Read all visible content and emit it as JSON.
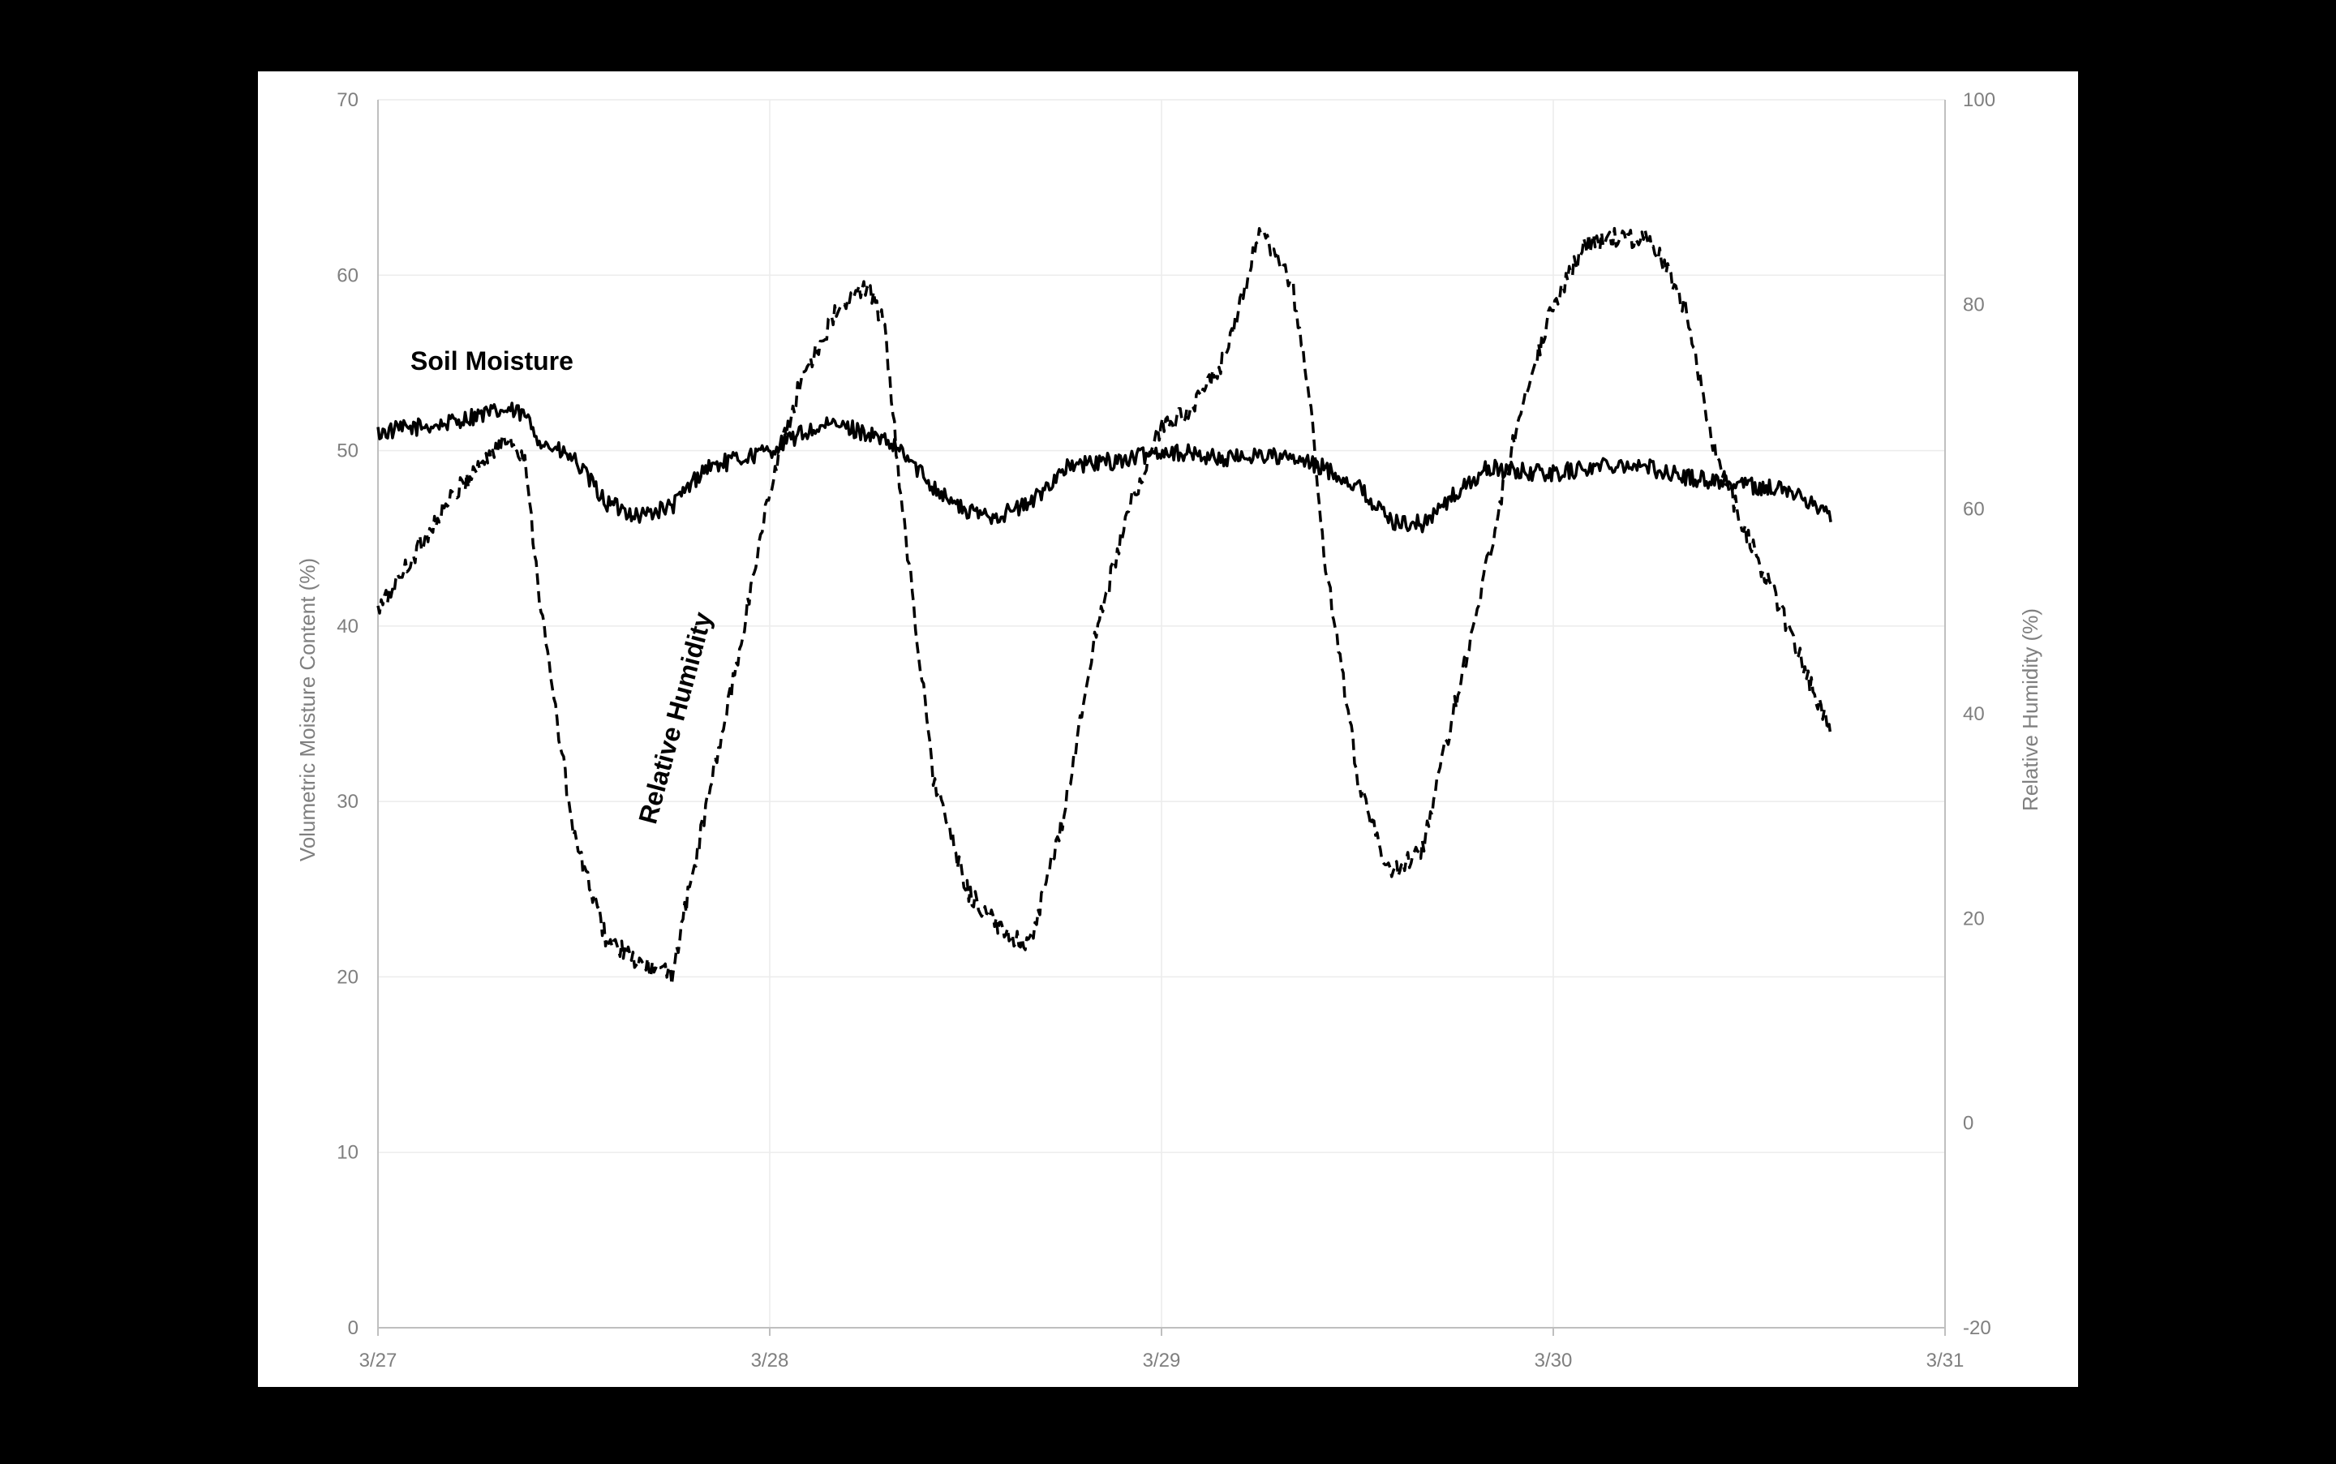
{
  "colors": {
    "page_background": "#000000",
    "plot_background": "#ffffff",
    "gridline": "#ececec",
    "axis": "#bfbfbf",
    "tick_text": "#7f7f7f",
    "series": "#000000"
  },
  "chart_data": {
    "type": "line",
    "title": "",
    "grid": true,
    "legend": "none",
    "x_axis": {
      "type": "date",
      "tick_labels": [
        "3/27",
        "3/28",
        "3/29",
        "3/30",
        "3/31"
      ],
      "range": [
        "3/27",
        "3/31"
      ]
    },
    "y_left": {
      "label": "Volumetric Moisture Content (%)",
      "range": [
        0,
        70
      ],
      "ticks": [
        0,
        10,
        20,
        30,
        40,
        50,
        60,
        70
      ]
    },
    "y_right": {
      "label": "Relative Humidity (%)",
      "range": [
        -20,
        100
      ],
      "ticks": [
        -20,
        0,
        20,
        40,
        60,
        80,
        100
      ]
    },
    "series": [
      {
        "name": "Soil Moisture",
        "axis": "left",
        "style": "solid",
        "noise": 0.5,
        "x": [
          "3/27 00:00",
          "3/27 02:00",
          "3/27 04:00",
          "3/27 06:00",
          "3/27 08:00",
          "3/27 09:00",
          "3/27 10:00",
          "3/27 12:00",
          "3/27 14:00",
          "3/27 16:00",
          "3/27 18:00",
          "3/27 20:00",
          "3/27 22:00",
          "3/28 00:00",
          "3/28 02:00",
          "3/28 04:00",
          "3/28 06:00",
          "3/28 08:00",
          "3/28 10:00",
          "3/28 12:00",
          "3/28 14:00",
          "3/28 16:00",
          "3/28 18:00",
          "3/28 20:00",
          "3/28 22:00",
          "3/29 00:00",
          "3/29 02:00",
          "3/29 04:00",
          "3/29 06:00",
          "3/29 08:00",
          "3/29 10:00",
          "3/29 12:00",
          "3/29 14:00",
          "3/29 16:00",
          "3/29 18:00",
          "3/29 20:00",
          "3/29 22:00",
          "3/30 00:00",
          "3/30 02:00",
          "3/30 04:00",
          "3/30 06:00",
          "3/30 08:00",
          "3/30 10:00",
          "3/30 12:00",
          "3/30 14:00",
          "3/30 16:00",
          "3/30 17:00"
        ],
        "y": [
          51.0,
          51.3,
          51.5,
          52.0,
          52.3,
          52.0,
          50.5,
          49.5,
          47.0,
          46.3,
          46.8,
          49.0,
          49.5,
          50.0,
          51.0,
          51.5,
          51.0,
          50.0,
          48.0,
          46.5,
          46.3,
          47.0,
          49.0,
          49.3,
          49.5,
          50.0,
          49.8,
          49.5,
          49.8,
          49.5,
          49.0,
          48.0,
          46.0,
          45.8,
          47.5,
          49.0,
          48.8,
          48.7,
          49.0,
          49.3,
          49.0,
          48.5,
          48.3,
          48.0,
          47.8,
          47.0,
          46.3
        ]
      },
      {
        "name": "Relative Humidity",
        "axis": "right",
        "style": "dashed",
        "noise": 1.0,
        "x": [
          "3/27 00:00",
          "3/27 02:00",
          "3/27 04:00",
          "3/27 06:00",
          "3/27 08:00",
          "3/27 09:00",
          "3/27 10:00",
          "3/27 12:00",
          "3/27 14:00",
          "3/27 16:00",
          "3/27 18:00",
          "3/27 20:00",
          "3/27 22:00",
          "3/28 00:00",
          "3/28 02:00",
          "3/28 04:00",
          "3/28 06:00",
          "3/28 07:00",
          "3/28 08:00",
          "3/28 10:00",
          "3/28 12:00",
          "3/28 14:00",
          "3/28 16:00",
          "3/28 18:00",
          "3/28 20:00",
          "3/28 22:00",
          "3/29 00:00",
          "3/29 02:00",
          "3/29 04:00",
          "3/29 06:00",
          "3/29 08:00",
          "3/29 09:00",
          "3/29 10:00",
          "3/29 12:00",
          "3/29 14:00",
          "3/29 16:00",
          "3/29 18:00",
          "3/29 20:00",
          "3/29 22:00",
          "3/30 00:00",
          "3/30 02:00",
          "3/30 04:00",
          "3/30 06:00",
          "3/30 08:00",
          "3/30 10:00",
          "3/30 12:00",
          "3/30 14:00",
          "3/30 16:00",
          "3/30 17:00"
        ],
        "y": [
          50.0,
          55.0,
          60.0,
          64.0,
          67.0,
          65.0,
          50.0,
          28.0,
          18.0,
          15.5,
          14.5,
          30.0,
          45.0,
          62.0,
          73.0,
          79.0,
          82.0,
          78.0,
          62.0,
          34.0,
          23.0,
          19.0,
          17.5,
          30.0,
          48.0,
          60.0,
          68.0,
          70.0,
          75.0,
          87.0,
          82.0,
          72.0,
          55.0,
          34.0,
          24.0,
          27.0,
          41.0,
          55.0,
          70.0,
          80.0,
          86.0,
          86.5,
          86.5,
          80.0,
          65.0,
          57.0,
          50.0,
          42.0,
          38.0
        ]
      }
    ],
    "annotations": [
      {
        "text": "Soil Moisture",
        "series": "Soil Moisture",
        "rotation_deg": 0
      },
      {
        "text": "Relative Humidity",
        "series": "Relative Humidity",
        "rotation_deg": -75
      }
    ]
  }
}
